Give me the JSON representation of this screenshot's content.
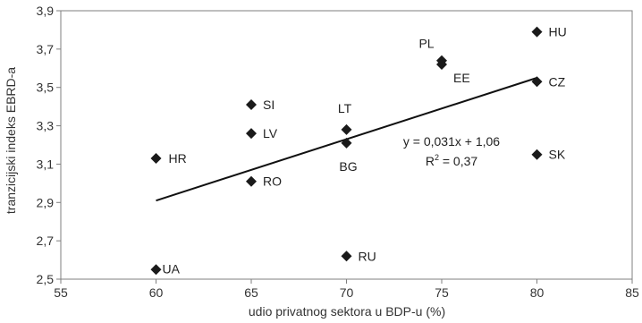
{
  "chart_data": {
    "type": "scatter",
    "title": "",
    "xlabel": "udio privatnog sektora u BDP-u (%)",
    "ylabel": "tranzicijski indeks EBRD-a",
    "xlim": [
      55,
      85
    ],
    "ylim": [
      2.5,
      3.9
    ],
    "x_ticks": [
      "55",
      "60",
      "65",
      "70",
      "75",
      "80",
      "85"
    ],
    "y_ticks": [
      "2,5",
      "2,7",
      "2,9",
      "3,1",
      "3,3",
      "3,5",
      "3,7",
      "3,9"
    ],
    "grid": false,
    "legend": "none",
    "marker": "diamond",
    "marker_color": "#1a1a1a",
    "points": [
      {
        "label": "HU",
        "x": 80,
        "y": 3.79
      },
      {
        "label": "PL",
        "x": 75,
        "y": 3.64
      },
      {
        "label": "EE",
        "x": 75,
        "y": 3.62
      },
      {
        "label": "CZ",
        "x": 80,
        "y": 3.53
      },
      {
        "label": "SI",
        "x": 65,
        "y": 3.41
      },
      {
        "label": "LT",
        "x": 70,
        "y": 3.28
      },
      {
        "label": "LV",
        "x": 65,
        "y": 3.26
      },
      {
        "label": "BG",
        "x": 70,
        "y": 3.21
      },
      {
        "label": "HR",
        "x": 60,
        "y": 3.13
      },
      {
        "label": "SK",
        "x": 80,
        "y": 3.15
      },
      {
        "label": "RO",
        "x": 65,
        "y": 3.01
      },
      {
        "label": "RU",
        "x": 70,
        "y": 2.62
      },
      {
        "label": "UA",
        "x": 60,
        "y": 2.55
      }
    ],
    "trendline": {
      "x_start": 60,
      "y_start": 2.91,
      "x_end": 80,
      "y_end": 3.55,
      "equation": "y = 0,031x + 1,06",
      "r2_prefix": "R",
      "r2_exp": "2",
      "r2_value": " = 0,37"
    }
  }
}
